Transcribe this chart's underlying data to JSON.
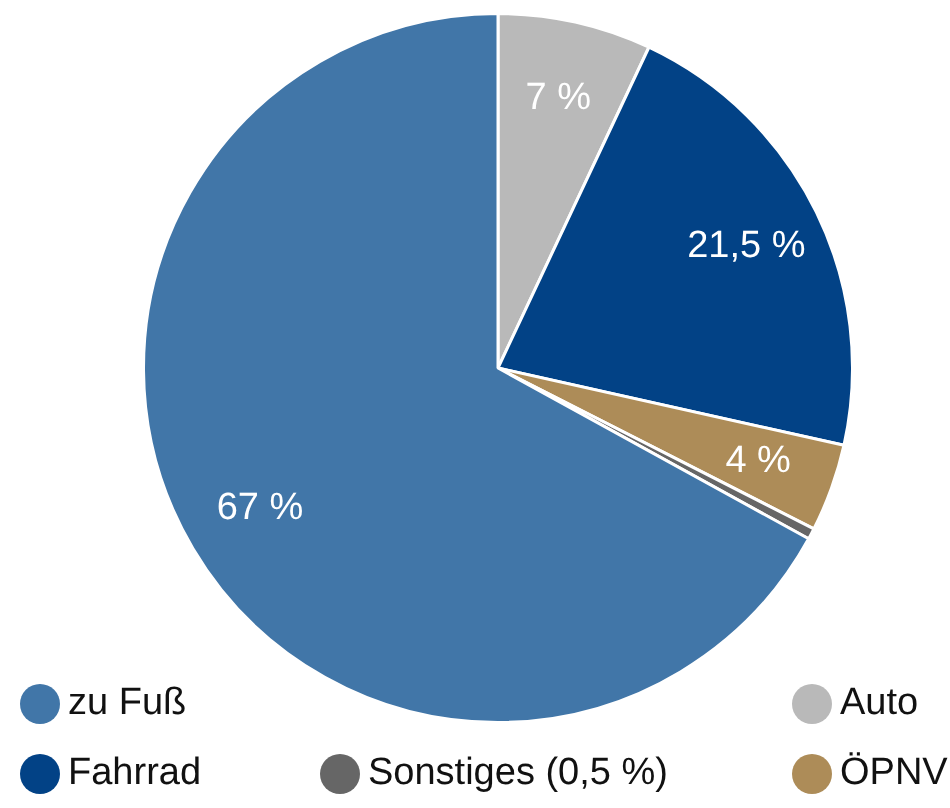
{
  "chart_data": {
    "type": "pie",
    "categories": [
      "Auto",
      "Fahrrad",
      "ÖPNV",
      "Sonstiges (0,5 %)",
      "zu Fuß"
    ],
    "values": [
      7,
      21.5,
      4,
      0.5,
      67
    ],
    "colors": [
      "#b9b9b9",
      "#024286",
      "#ad8c58",
      "#666666",
      "#4176a8"
    ],
    "value_labels": [
      "7 %",
      "21,5 %",
      "4 %",
      null,
      "67 %"
    ],
    "legend": "bottom"
  }
}
